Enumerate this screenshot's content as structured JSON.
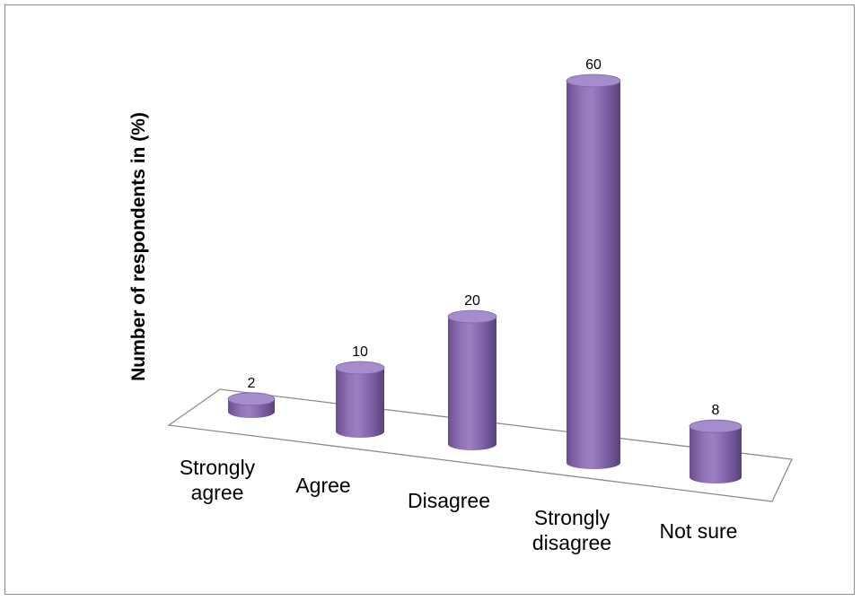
{
  "chart_data": {
    "type": "bar",
    "style": "3d-cylinder",
    "categories": [
      "Strongly agree",
      "Agree",
      "Disagree",
      "Strongly disagree",
      "Not sure"
    ],
    "category_lines": [
      [
        "Strongly",
        "agree"
      ],
      [
        "Agree"
      ],
      [
        "Disagree"
      ],
      [
        "Strongly",
        "disagree"
      ],
      [
        "Not sure"
      ]
    ],
    "values": [
      2,
      10,
      20,
      60,
      8
    ],
    "ylabel": "Number of respondents in (%)",
    "xlabel": "",
    "title": "",
    "data_labels": true,
    "grid": false,
    "legend": "none",
    "bar_color": "#8064a2",
    "bar_top_color": "#a58ccc"
  }
}
